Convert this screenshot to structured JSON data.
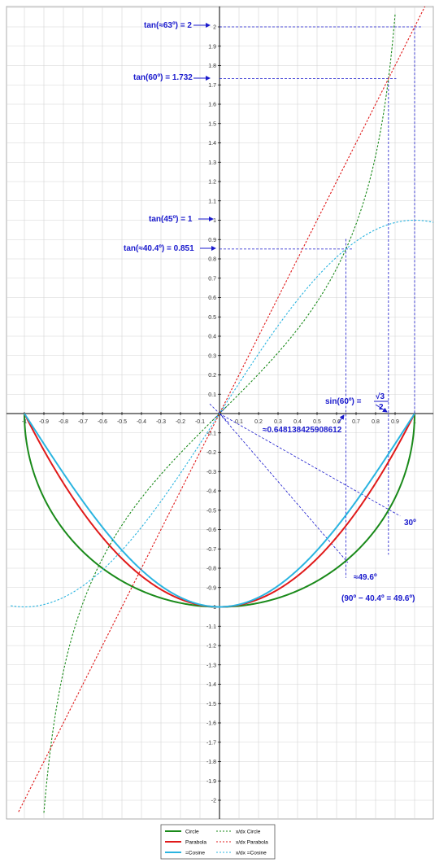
{
  "chart_data": {
    "type": "line",
    "title": "",
    "xlabel": "",
    "ylabel": "",
    "xlim": [
      -1.07,
      1.12
    ],
    "ylim": [
      -2.12,
      2.12
    ],
    "grid": true,
    "x_ticks": [
      -1,
      -0.9,
      -0.8,
      -0.7,
      -0.6,
      -0.5,
      -0.4,
      -0.3,
      -0.2,
      -0.1,
      0.1,
      0.2,
      0.3,
      0.4,
      0.5,
      0.6,
      0.7,
      0.8,
      0.9,
      1
    ],
    "x_tick_labels": [
      "-1",
      "-0.9",
      "-0.8",
      "-0.7",
      "-0.6",
      "-0.5",
      "-0.4",
      "-0.3",
      "-0.2",
      "-0.1",
      "0.1",
      "0.2",
      "0.3",
      "0.4",
      "0.5",
      "0.6",
      "0.7",
      "0.8",
      "0.9",
      "1"
    ],
    "y_ticks": [
      2,
      1.9,
      1.8,
      1.7,
      1.6,
      1.5,
      1.4,
      1.3,
      1.2,
      1.1,
      1,
      0.9,
      0.8,
      0.7,
      0.6,
      0.5,
      0.4,
      0.3,
      0.2,
      0.1,
      -0.1,
      -0.2,
      -0.3,
      -0.4,
      -0.5,
      -0.6,
      -0.7,
      -0.8,
      -0.9,
      -1,
      -1.1,
      -1.2,
      -1.3,
      -1.4,
      -1.5,
      -1.6,
      -1.7,
      -1.8,
      -1.9,
      -2
    ],
    "y_tick_labels": [
      "2",
      "1.9",
      "1.8",
      "1.7",
      "1.6",
      "1.5",
      "1.4",
      "1.3",
      "1.2",
      "1.1",
      "1",
      "0.9",
      "0.8",
      "0.7",
      "0.6",
      "0.5",
      "0.4",
      "0.3",
      "0.2",
      "0.1",
      "-0.1",
      "-0.2",
      "-0.3",
      "-0.4",
      "-0.5",
      "-0.6",
      "-0.7",
      "-0.8",
      "-0.9",
      "-1",
      "-1.1",
      "-1.2",
      "-1.3",
      "-1.4",
      "-1.5",
      "-1.6",
      "-1.7",
      "-1.8",
      "-1.9",
      "-2"
    ],
    "series": [
      {
        "name": "Circle",
        "color": "#1a8a1a",
        "dashed": false,
        "formula": "-sqrt(1-x^2)",
        "domain": [
          -1,
          1
        ]
      },
      {
        "name": "Parabola",
        "color": "#e01a1a",
        "dashed": false,
        "formula": "x^2-1",
        "domain": [
          -1,
          1
        ]
      },
      {
        "name": "Cosine",
        "color": "#2ab4e0",
        "dashed": false,
        "formula": "-cos(pi*x/2)",
        "domain": [
          -1,
          1
        ]
      },
      {
        "name": "x/dx Circle",
        "color": "#1a8a1a",
        "dashed": true,
        "formula": "x/sqrt(1-x^2)",
        "domain": [
          -0.9,
          0.9
        ]
      },
      {
        "name": "x/dx Parabola",
        "color": "#e01a1a",
        "dashed": true,
        "formula": "2x",
        "domain": [
          -1.03,
          1.06
        ]
      },
      {
        "name": "x/dx =Cosine",
        "color": "#2ab4e0",
        "dashed": true,
        "formula": "sin(pi*x/2)",
        "domain": [
          -1.07,
          1.12
        ]
      }
    ],
    "legend": {
      "placement": "bottom",
      "entries": [
        "Circle",
        "x/dx Circle",
        "Parabola",
        "x/dx Parabola",
        "=Cosine",
        "x/dx =Cosine"
      ]
    },
    "annotations": {
      "tan63": "tan(≈63º) = 2",
      "tan60": "tan(60º) = 1.732",
      "tan45": "tan(45º) = 1",
      "tan40": "tan(≈40.4º) = 0.851",
      "sin60_prefix": "sin(60º) =",
      "sin60_num": "√3",
      "sin60_den": "2",
      "x_value": "≈0.648138425908612",
      "angle30": "30º",
      "angle49": "≈49.6º",
      "formula": "(90º − 40.4º = 49.6º)"
    },
    "guide_lines": {
      "horizontal_y": [
        2,
        1.732,
        0.851
      ],
      "vertical_x": [
        0.648,
        0.866,
        1
      ],
      "ray_30deg_end": [
        0.866,
        -0.5
      ],
      "ray_49deg_end": [
        0.648,
        -0.761
      ]
    }
  }
}
